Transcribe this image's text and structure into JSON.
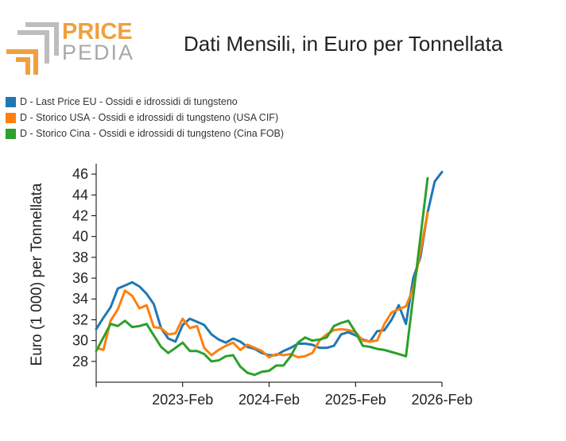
{
  "header": {
    "logo_top": "PRICE",
    "logo_bottom": "PEDIA",
    "title": "Dati Mensili, in Euro per Tonnellata"
  },
  "colors": {
    "logo_orange": "#F0A03C",
    "logo_gray": "#BDBDBD",
    "blue": "#1F77B4",
    "orange": "#FF7F0E",
    "green": "#2CA02C"
  },
  "chart_data": {
    "type": "line",
    "title": "Dati Mensili, in Euro per Tonnellata",
    "xlabel": "",
    "ylabel": "Euro (1 000) per Tonnellata",
    "xlim": [
      "2022-02",
      "2026-02"
    ],
    "ylim": [
      26,
      47
    ],
    "yticks": [
      28,
      30,
      32,
      34,
      36,
      38,
      40,
      42,
      44,
      46
    ],
    "xticks": [
      "2022-02",
      "2023-02",
      "2024-02",
      "2025-02",
      "2026-02"
    ],
    "xtick_labels": [
      "",
      "2023-Feb",
      "2024-Feb",
      "2025-Feb",
      "2026-Feb"
    ],
    "legend_position": "top-left",
    "grid": false,
    "series": [
      {
        "name": "D - Last Price EU - Ossidi e idrossidi di tungsteno",
        "color": "#1F77B4",
        "points": [
          [
            "2022-02",
            31.1
          ],
          [
            "2022-03",
            32.2
          ],
          [
            "2022-04",
            33.2
          ],
          [
            "2022-05",
            35.0
          ],
          [
            "2022-06",
            35.3
          ],
          [
            "2022-07",
            35.6
          ],
          [
            "2022-08",
            35.2
          ],
          [
            "2022-09",
            34.5
          ],
          [
            "2022-10",
            33.5
          ],
          [
            "2022-11",
            31.2
          ],
          [
            "2022-12",
            30.2
          ],
          [
            "2023-01",
            29.9
          ],
          [
            "2023-02",
            31.5
          ],
          [
            "2023-03",
            32.1
          ],
          [
            "2023-04",
            31.8
          ],
          [
            "2023-05",
            31.5
          ],
          [
            "2023-06",
            30.6
          ],
          [
            "2023-07",
            30.1
          ],
          [
            "2023-08",
            29.8
          ],
          [
            "2023-09",
            30.2
          ],
          [
            "2023-10",
            29.9
          ],
          [
            "2023-11",
            29.4
          ],
          [
            "2023-12",
            29.2
          ],
          [
            "2024-01",
            28.8
          ],
          [
            "2024-02",
            28.6
          ],
          [
            "2024-03",
            28.6
          ],
          [
            "2024-04",
            29.0
          ],
          [
            "2024-05",
            29.3
          ],
          [
            "2024-06",
            29.7
          ],
          [
            "2024-07",
            29.7
          ],
          [
            "2024-08",
            29.6
          ],
          [
            "2024-09",
            29.3
          ],
          [
            "2024-10",
            29.3
          ],
          [
            "2024-11",
            29.5
          ],
          [
            "2024-12",
            30.6
          ],
          [
            "2025-01",
            30.8
          ],
          [
            "2025-02",
            30.5
          ],
          [
            "2025-03",
            30.1
          ],
          [
            "2025-04",
            29.9
          ],
          [
            "2025-05",
            30.9
          ],
          [
            "2025-06",
            31.0
          ],
          [
            "2025-07",
            32.0
          ],
          [
            "2025-08",
            33.4
          ],
          [
            "2025-09",
            31.6
          ],
          [
            "2025-10",
            36.0
          ],
          [
            "2025-11",
            38.0
          ],
          [
            "2025-12",
            42.3
          ],
          [
            "2026-01",
            45.3
          ],
          [
            "2026-02",
            46.2
          ]
        ]
      },
      {
        "name": "D - Storico USA - Ossidi e idrossidi di tungsteno (USA CIF)",
        "color": "#FF7F0E",
        "points": [
          [
            "2022-02",
            29.3
          ],
          [
            "2022-03",
            29.1
          ],
          [
            "2022-04",
            31.9
          ],
          [
            "2022-05",
            33.0
          ],
          [
            "2022-06",
            34.8
          ],
          [
            "2022-07",
            34.3
          ],
          [
            "2022-08",
            33.1
          ],
          [
            "2022-09",
            33.4
          ],
          [
            "2022-10",
            31.3
          ],
          [
            "2022-11",
            31.2
          ],
          [
            "2022-12",
            30.6
          ],
          [
            "2023-01",
            30.7
          ],
          [
            "2023-02",
            32.1
          ],
          [
            "2023-03",
            31.2
          ],
          [
            "2023-04",
            31.4
          ],
          [
            "2023-05",
            29.3
          ],
          [
            "2023-06",
            28.6
          ],
          [
            "2023-07",
            29.1
          ],
          [
            "2023-08",
            29.5
          ],
          [
            "2023-09",
            29.8
          ],
          [
            "2023-10",
            29.1
          ],
          [
            "2023-11",
            29.6
          ],
          [
            "2023-12",
            29.3
          ],
          [
            "2024-01",
            29.0
          ],
          [
            "2024-02",
            28.4
          ],
          [
            "2024-03",
            28.7
          ],
          [
            "2024-04",
            28.6
          ],
          [
            "2024-05",
            28.7
          ],
          [
            "2024-06",
            28.4
          ],
          [
            "2024-07",
            28.5
          ],
          [
            "2024-08",
            28.8
          ],
          [
            "2024-09",
            30.0
          ],
          [
            "2024-10",
            30.6
          ],
          [
            "2024-11",
            31.0
          ],
          [
            "2024-12",
            31.1
          ],
          [
            "2025-01",
            31.0
          ],
          [
            "2025-02",
            30.8
          ],
          [
            "2025-03",
            30.0
          ],
          [
            "2025-04",
            29.9
          ],
          [
            "2025-05",
            30.0
          ],
          [
            "2025-06",
            31.6
          ],
          [
            "2025-07",
            32.7
          ],
          [
            "2025-08",
            33.0
          ],
          [
            "2025-09",
            33.3
          ],
          [
            "2025-10",
            35.0
          ],
          [
            "2025-11",
            38.5
          ],
          [
            "2025-12",
            42.3
          ]
        ]
      },
      {
        "name": "D - Storico Cina - Ossidi e idrossidi di tungsteno (Cina FOB)",
        "color": "#2CA02C",
        "points": [
          [
            "2022-02",
            29.0
          ],
          [
            "2022-03",
            30.3
          ],
          [
            "2022-04",
            31.6
          ],
          [
            "2022-05",
            31.4
          ],
          [
            "2022-06",
            31.9
          ],
          [
            "2022-07",
            31.3
          ],
          [
            "2022-08",
            31.4
          ],
          [
            "2022-09",
            31.6
          ],
          [
            "2022-10",
            30.5
          ],
          [
            "2022-11",
            29.4
          ],
          [
            "2022-12",
            28.8
          ],
          [
            "2023-01",
            29.3
          ],
          [
            "2023-02",
            29.8
          ],
          [
            "2023-03",
            29.0
          ],
          [
            "2023-04",
            29.0
          ],
          [
            "2023-05",
            28.7
          ],
          [
            "2023-06",
            28.0
          ],
          [
            "2023-07",
            28.1
          ],
          [
            "2023-08",
            28.5
          ],
          [
            "2023-09",
            28.6
          ],
          [
            "2023-10",
            27.5
          ],
          [
            "2023-11",
            26.9
          ],
          [
            "2023-12",
            26.7
          ],
          [
            "2024-01",
            27.0
          ],
          [
            "2024-02",
            27.1
          ],
          [
            "2024-03",
            27.6
          ],
          [
            "2024-04",
            27.6
          ],
          [
            "2024-05",
            28.5
          ],
          [
            "2024-06",
            29.8
          ],
          [
            "2024-07",
            30.3
          ],
          [
            "2024-08",
            30.0
          ],
          [
            "2024-09",
            30.1
          ],
          [
            "2024-10",
            30.3
          ],
          [
            "2024-11",
            31.4
          ],
          [
            "2024-12",
            31.7
          ],
          [
            "2025-01",
            31.9
          ],
          [
            "2025-02",
            30.8
          ],
          [
            "2025-03",
            29.5
          ],
          [
            "2025-04",
            29.4
          ],
          [
            "2025-05",
            29.2
          ],
          [
            "2025-06",
            29.1
          ],
          [
            "2025-07",
            28.9
          ],
          [
            "2025-08",
            28.7
          ],
          [
            "2025-09",
            28.5
          ],
          [
            "2025-12",
            45.6
          ]
        ]
      }
    ]
  }
}
